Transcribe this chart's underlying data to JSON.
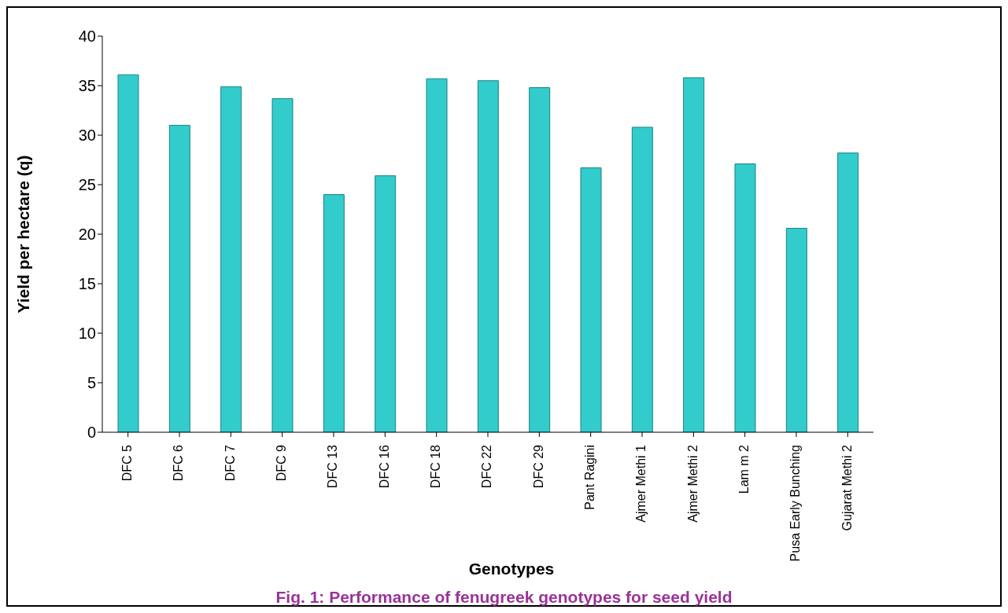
{
  "chart_data": {
    "type": "bar",
    "title": "Fig. 1: Performance of fenugreek genotypes for seed yield",
    "xlabel": "Genotypes",
    "ylabel": "Yield per hectare (q)",
    "categories": [
      "DFC 5",
      "DFC 6",
      "DFC 7",
      "DFC 9",
      "DFC 13",
      "DFC 16",
      "DFC 18",
      "DFC 22",
      "DFC 29",
      "Pant Ragini",
      "Ajmer Methi 1",
      "Ajmer Methi 2",
      "Lam m 2",
      "Pusa Early Bunching",
      "Gujarat Methi 2"
    ],
    "values": [
      36.1,
      31.0,
      34.9,
      33.7,
      24.0,
      25.9,
      35.7,
      35.5,
      34.8,
      26.7,
      30.8,
      35.8,
      27.1,
      20.6,
      28.2
    ],
    "color": "#33cccc",
    "ylim": [
      0,
      40
    ],
    "yticks": [
      0,
      5,
      10,
      15,
      20,
      25,
      30,
      35,
      40
    ]
  }
}
